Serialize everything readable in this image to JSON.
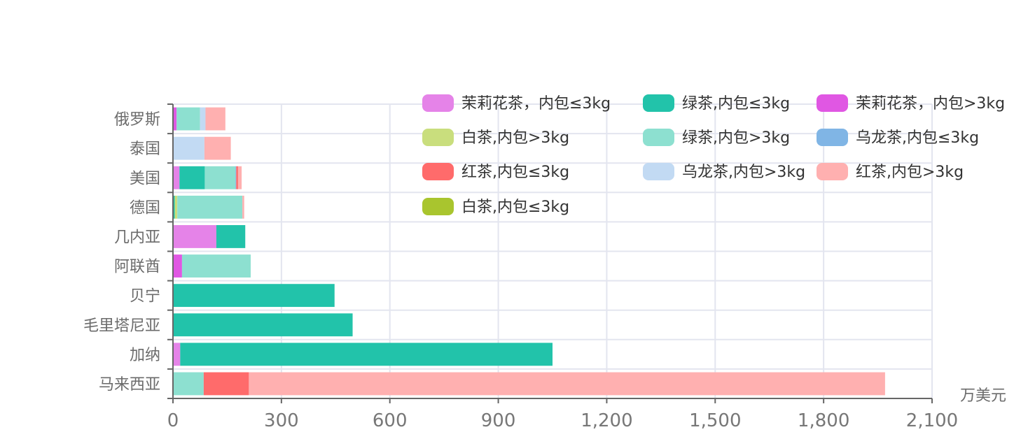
{
  "chart_data": {
    "type": "bar",
    "orientation": "horizontal",
    "stacked": true,
    "unit_label": "万美元",
    "xlim": [
      0,
      2100
    ],
    "x_ticks": [
      "0",
      "300",
      "600",
      "900",
      "1,200",
      "1,500",
      "1,800",
      "2,100"
    ],
    "x_tick_values": [
      0,
      300,
      600,
      900,
      1200,
      1500,
      1800,
      2100
    ],
    "categories": [
      "马来西亚",
      "加纳",
      "毛里塔尼亚",
      "贝宁",
      "阿联酋",
      "几内亚",
      "德国",
      "美国",
      "泰国",
      "俄罗斯"
    ],
    "series": [
      {
        "name": "茉莉花茶，内包≤3kg",
        "color": "#e583e8",
        "values": [
          0,
          20,
          0,
          0,
          0,
          120,
          0,
          18,
          0,
          0
        ]
      },
      {
        "name": "绿茶,内包≤3kg",
        "color": "#22c3aa",
        "values": [
          0,
          1030,
          497,
          447,
          0,
          80,
          5,
          70,
          0,
          0
        ]
      },
      {
        "name": "茉莉花茶，内包>3kg",
        "color": "#e057e3",
        "values": [
          0,
          0,
          0,
          0,
          25,
          0,
          0,
          0,
          0,
          10
        ]
      },
      {
        "name": "白茶,内包>3kg",
        "color": "#c9de7d",
        "values": [
          0,
          0,
          0,
          0,
          0,
          0,
          7,
          0,
          0,
          0
        ]
      },
      {
        "name": "绿茶,内包>3kg",
        "color": "#8de0d0",
        "values": [
          85,
          0,
          0,
          0,
          190,
          0,
          180,
          85,
          0,
          65
        ]
      },
      {
        "name": "乌龙茶,内包≤3kg",
        "color": "#80b5e5",
        "values": [
          0,
          0,
          0,
          0,
          0,
          0,
          0,
          2,
          0,
          0
        ]
      },
      {
        "name": "红茶,内包≤3kg",
        "color": "#ff6b6b",
        "values": [
          125,
          0,
          0,
          0,
          0,
          0,
          0,
          5,
          0,
          0
        ]
      },
      {
        "name": "乌龙茶,内包>3kg",
        "color": "#c2daf3",
        "values": [
          0,
          0,
          0,
          0,
          0,
          0,
          0,
          0,
          87,
          15
        ]
      },
      {
        "name": "红茶,内包>3kg",
        "color": "#ffb0b0",
        "values": [
          1760,
          0,
          0,
          0,
          0,
          0,
          5,
          10,
          73,
          55
        ]
      },
      {
        "name": "白茶,内包≤3kg",
        "color": "#a9c52e",
        "values": [
          0,
          0,
          0,
          0,
          0,
          0,
          0,
          0,
          0,
          0
        ]
      }
    ],
    "grid": true,
    "legend_position": "top-right"
  },
  "colors": {
    "axis": "#666666",
    "grid": "#e3e5ef",
    "background": "#ffffff"
  }
}
